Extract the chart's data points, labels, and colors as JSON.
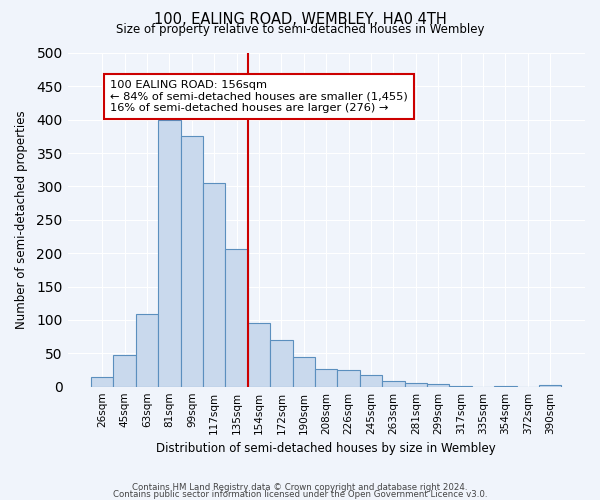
{
  "title": "100, EALING ROAD, WEMBLEY, HA0 4TH",
  "subtitle": "Size of property relative to semi-detached houses in Wembley",
  "xlabel": "Distribution of semi-detached houses by size in Wembley",
  "ylabel": "Number of semi-detached properties",
  "bar_labels": [
    "26sqm",
    "45sqm",
    "63sqm",
    "81sqm",
    "99sqm",
    "117sqm",
    "135sqm",
    "154sqm",
    "172sqm",
    "190sqm",
    "208sqm",
    "226sqm",
    "245sqm",
    "263sqm",
    "281sqm",
    "299sqm",
    "317sqm",
    "335sqm",
    "354sqm",
    "372sqm",
    "390sqm"
  ],
  "bar_heights": [
    14,
    47,
    109,
    400,
    375,
    305,
    207,
    95,
    70,
    44,
    27,
    25,
    18,
    9,
    5,
    4,
    1,
    0,
    1,
    0,
    3
  ],
  "bar_color": "#c9d9ed",
  "bar_edge_color": "#5b8fbe",
  "property_line_x": 7,
  "property_label": "100 EALING ROAD: 156sqm",
  "pct_smaller": 84,
  "n_smaller": 1455,
  "pct_larger": 16,
  "n_larger": 276,
  "annotation_box_color": "#ffffff",
  "annotation_box_edge_color": "#cc0000",
  "vline_color": "#cc0000",
  "ylim": [
    0,
    500
  ],
  "yticks": [
    0,
    50,
    100,
    150,
    200,
    250,
    300,
    350,
    400,
    450,
    500
  ],
  "background_color": "#f0f4fb",
  "grid_color": "#ffffff",
  "footer1": "Contains HM Land Registry data © Crown copyright and database right 2024.",
  "footer2": "Contains public sector information licensed under the Open Government Licence v3.0."
}
